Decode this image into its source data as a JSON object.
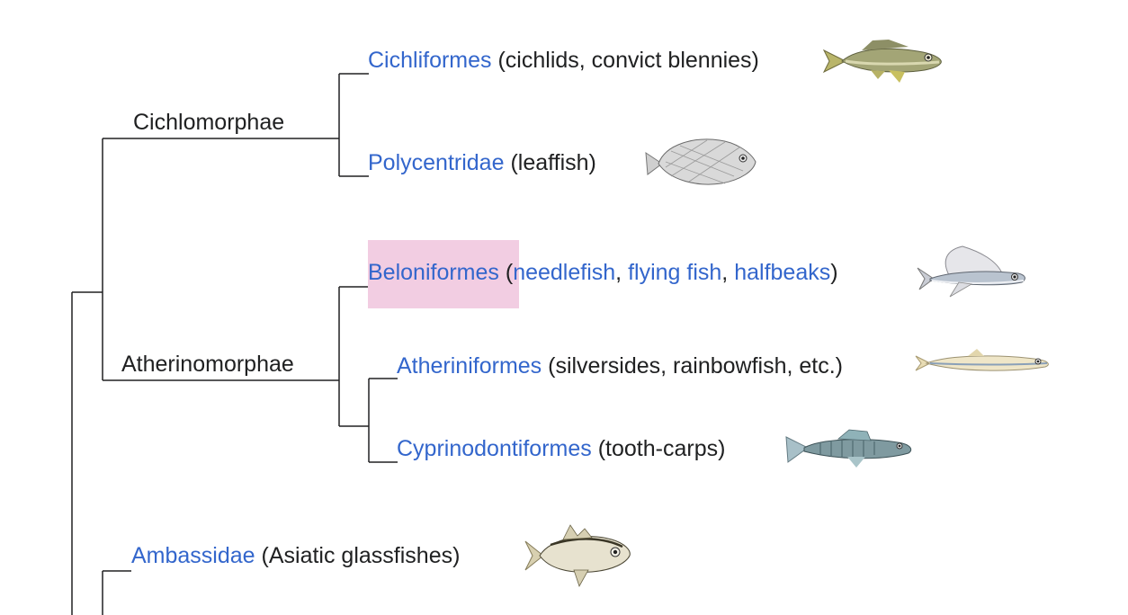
{
  "clades": {
    "cichlomorphae": "Cichlomorphae",
    "atherinomorphae": "Atherinomorphae"
  },
  "taxa": {
    "cichliformes": {
      "name": "Cichliformes",
      "desc": "(cichlids, convict blennies)"
    },
    "polycentridae": {
      "name": "Polycentridae",
      "desc": "(leaffish)"
    },
    "beloniformes": {
      "name": "Beloniformes",
      "open": "(",
      "needlefish": "needlefish",
      "sep1": ", ",
      "flying_fish": "flying fish",
      "sep2": ", ",
      "halfbeaks": "halfbeaks",
      "close": ")"
    },
    "atheriniformes": {
      "name": "Atheriniformes",
      "desc": "(silversides, rainbowfish, etc.)"
    },
    "cyprinodontiformes": {
      "name": "Cyprinodontiformes",
      "desc": "(tooth-carps)"
    },
    "ambassidae": {
      "name": "Ambassidae",
      "desc": "(Asiatic glassfishes)"
    }
  },
  "colors": {
    "link": "#3366cc",
    "text": "#202122",
    "highlight": "#f2cde2",
    "line": "#202122"
  },
  "icons": {
    "cichliformes": "fish-illustration",
    "polycentridae": "leaffish-illustration",
    "beloniformes": "flying-fish-illustration",
    "atheriniformes": "silverside-illustration",
    "cyprinodontiformes": "tooth-carp-illustration",
    "ambassidae": "glassfish-illustration"
  }
}
